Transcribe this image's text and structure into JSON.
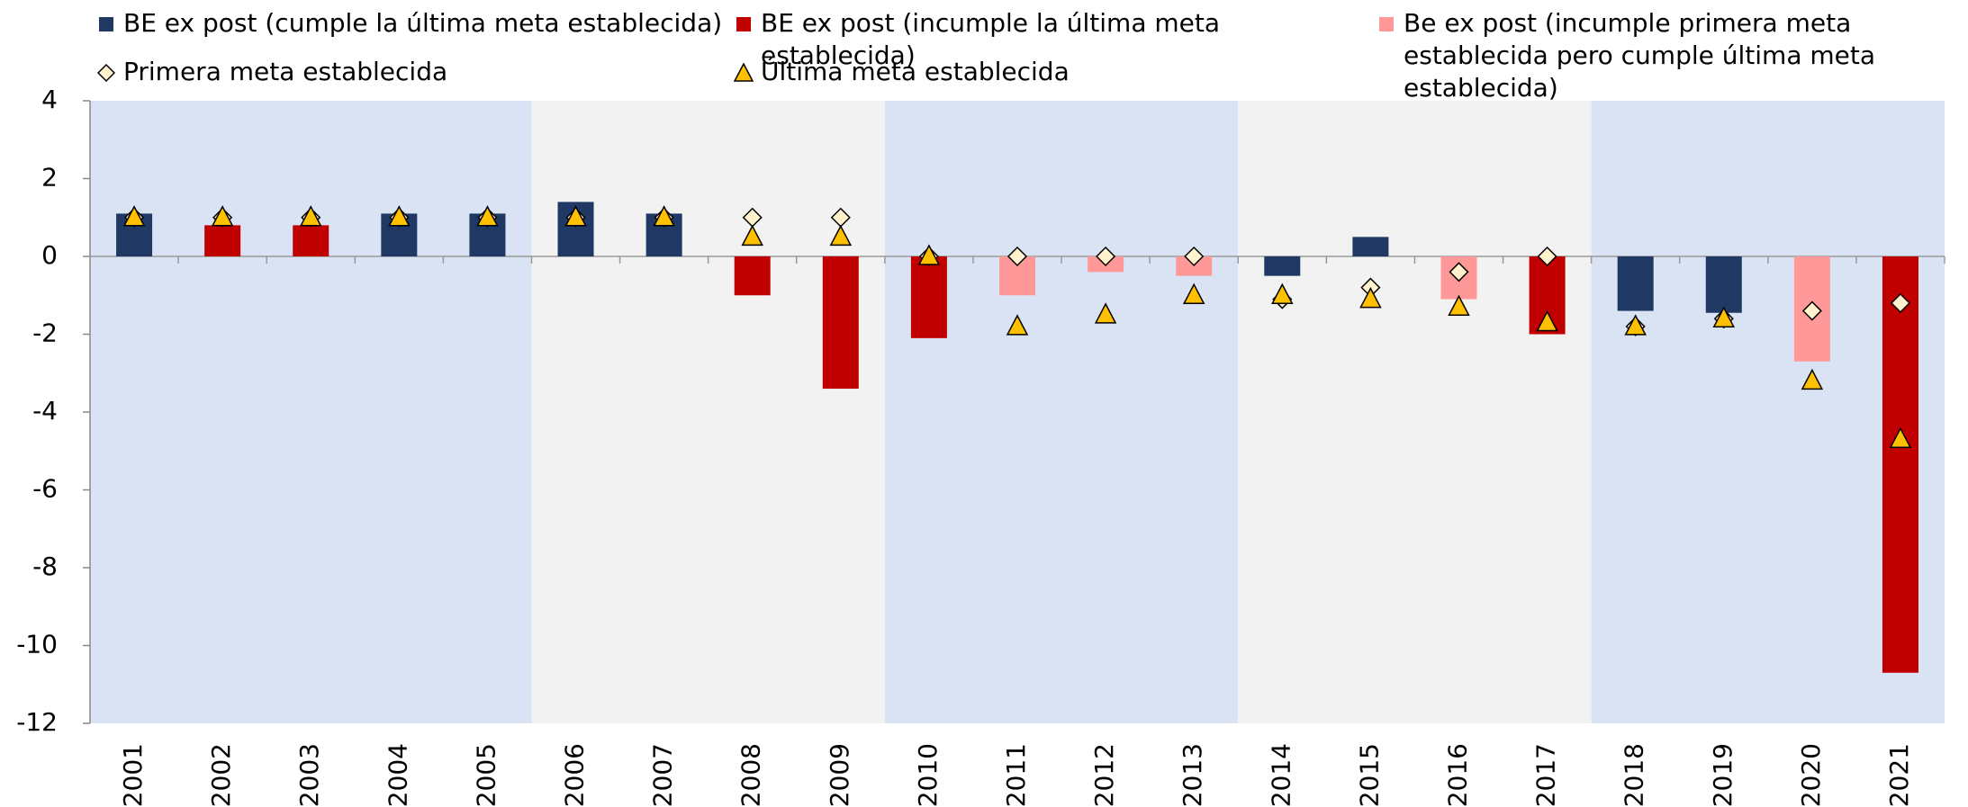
{
  "chart_data": {
    "type": "bar",
    "categories": [
      "2001",
      "2002",
      "2003",
      "2004",
      "2005",
      "2006",
      "2007",
      "2008",
      "2009",
      "2010",
      "2011",
      "2012",
      "2013",
      "2014",
      "2015",
      "2016",
      "2017",
      "2018",
      "2019",
      "2020",
      "2021"
    ],
    "series": [
      {
        "name": "BE ex post (cumple la última meta establecida)",
        "color": "#1f3864",
        "marker": "bar",
        "values": [
          1.1,
          null,
          null,
          1.1,
          1.1,
          1.4,
          1.1,
          null,
          null,
          null,
          null,
          null,
          null,
          -0.5,
          0.5,
          null,
          null,
          -1.4,
          -1.45,
          null,
          null
        ]
      },
      {
        "name": "BE ex post (incumple la última meta establecida)",
        "color": "#c00000",
        "marker": "bar",
        "values": [
          null,
          0.8,
          0.8,
          null,
          null,
          null,
          null,
          -1.0,
          -3.4,
          -2.1,
          null,
          null,
          null,
          null,
          null,
          null,
          -2.0,
          null,
          null,
          null,
          -10.7
        ]
      },
      {
        "name": "Be ex post (incumple primera meta establecida pero cumple última meta establecida)",
        "color": "#ff9999",
        "marker": "bar",
        "values": [
          null,
          null,
          null,
          null,
          null,
          null,
          null,
          null,
          null,
          null,
          -1.0,
          -0.4,
          -0.5,
          null,
          null,
          -1.1,
          null,
          null,
          null,
          -2.7,
          null
        ]
      },
      {
        "name": "Primera meta establecida",
        "color": "#fff2cc",
        "marker": "diamond",
        "values": [
          1.0,
          1.0,
          1.0,
          1.0,
          1.0,
          1.0,
          1.0,
          1.0,
          1.0,
          0,
          0,
          0,
          0,
          -1.1,
          -0.8,
          -0.4,
          0,
          -1.8,
          -1.6,
          -1.4,
          -1.2
        ]
      },
      {
        "name": "Última meta establecida",
        "color": "#ffc000",
        "marker": "triangle",
        "values": [
          1.0,
          1.0,
          1.0,
          1.0,
          1.0,
          1.0,
          1.0,
          0.5,
          0.5,
          0,
          -1.8,
          -1.5,
          -1.0,
          -1.0,
          -1.1,
          -1.3,
          -1.7,
          -1.8,
          -1.6,
          -3.2,
          -4.7
        ]
      }
    ],
    "ylim": [
      -12,
      4
    ],
    "yticks": [
      4,
      2,
      0,
      -2,
      -4,
      -6,
      -8,
      -10,
      -12
    ]
  }
}
